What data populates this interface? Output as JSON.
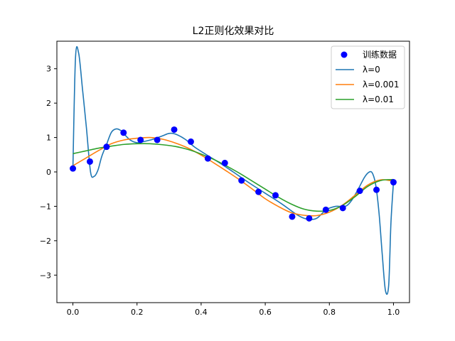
{
  "chart_data": {
    "type": "line",
    "title": "L2正则化效果对比",
    "xlabel": "",
    "ylabel": "",
    "xlim": [
      -0.05,
      1.05
    ],
    "ylim": [
      -3.8,
      3.8
    ],
    "xticks": [
      0.0,
      0.2,
      0.4,
      0.6,
      0.8,
      1.0
    ],
    "xtick_labels": [
      "0.0",
      "0.2",
      "0.4",
      "0.6",
      "0.8",
      "1.0"
    ],
    "yticks": [
      -3,
      -2,
      -1,
      0,
      1,
      2,
      3
    ],
    "ytick_labels": [
      "−3",
      "−2",
      "−1",
      "0",
      "1",
      "2",
      "3"
    ],
    "grid": false,
    "legend_position": "top-right",
    "scatter": {
      "name": "训练数据",
      "color": "#0000ff",
      "x": [
        0.0,
        0.053,
        0.105,
        0.158,
        0.211,
        0.263,
        0.316,
        0.368,
        0.421,
        0.474,
        0.526,
        0.579,
        0.632,
        0.684,
        0.737,
        0.789,
        0.842,
        0.895,
        0.947,
        1.0
      ],
      "y": [
        0.1,
        0.3,
        0.73,
        1.14,
        0.93,
        0.93,
        1.23,
        0.88,
        0.39,
        0.26,
        -0.25,
        -0.58,
        -0.68,
        -1.3,
        -1.35,
        -1.1,
        -1.05,
        -0.55,
        -0.52,
        -0.3
      ]
    },
    "series": [
      {
        "name": "λ=0",
        "color": "#1f77b4",
        "x": [
          0.0,
          0.008,
          0.018,
          0.03,
          0.042,
          0.055,
          0.066,
          0.078,
          0.09,
          0.105,
          0.12,
          0.135,
          0.15,
          0.165,
          0.18,
          0.2,
          0.22,
          0.25,
          0.28,
          0.3,
          0.32,
          0.35,
          0.38,
          0.42,
          0.46,
          0.5,
          0.55,
          0.6,
          0.65,
          0.7,
          0.73,
          0.76,
          0.79,
          0.82,
          0.85,
          0.87,
          0.89,
          0.91,
          0.925,
          0.935,
          0.945,
          0.955,
          0.965,
          0.975,
          0.985,
          0.992,
          1.0
        ],
        "y": [
          0.1,
          3.3,
          3.45,
          2.4,
          1.3,
          0.0,
          -0.13,
          0.05,
          0.45,
          0.8,
          1.15,
          1.25,
          1.2,
          1.05,
          0.92,
          0.85,
          0.88,
          0.95,
          1.05,
          1.12,
          1.1,
          0.95,
          0.72,
          0.48,
          0.25,
          0.0,
          -0.32,
          -0.62,
          -0.92,
          -1.25,
          -1.37,
          -1.35,
          -1.1,
          -1.0,
          -1.0,
          -0.82,
          -0.5,
          -0.15,
          0.0,
          -0.05,
          -0.4,
          -1.2,
          -2.4,
          -3.45,
          -3.3,
          -1.5,
          -0.3
        ]
      },
      {
        "name": "λ=0.001",
        "color": "#ff7f0e",
        "x": [
          0.0,
          0.04,
          0.08,
          0.12,
          0.16,
          0.2,
          0.24,
          0.28,
          0.32,
          0.36,
          0.4,
          0.44,
          0.48,
          0.52,
          0.56,
          0.6,
          0.64,
          0.68,
          0.72,
          0.76,
          0.8,
          0.84,
          0.88,
          0.92,
          0.96,
          1.0
        ],
        "y": [
          0.18,
          0.4,
          0.62,
          0.82,
          0.93,
          0.98,
          1.0,
          0.95,
          0.84,
          0.69,
          0.49,
          0.26,
          0.02,
          -0.23,
          -0.5,
          -0.78,
          -1.0,
          -1.18,
          -1.26,
          -1.27,
          -1.17,
          -0.97,
          -0.68,
          -0.38,
          -0.23,
          -0.27
        ]
      },
      {
        "name": "λ=0.01",
        "color": "#2ca02c",
        "x": [
          0.0,
          0.04,
          0.08,
          0.12,
          0.16,
          0.2,
          0.24,
          0.28,
          0.32,
          0.36,
          0.4,
          0.44,
          0.48,
          0.52,
          0.56,
          0.6,
          0.64,
          0.68,
          0.72,
          0.76,
          0.8,
          0.84,
          0.88,
          0.92,
          0.96,
          1.0
        ],
        "y": [
          0.53,
          0.61,
          0.69,
          0.75,
          0.8,
          0.82,
          0.82,
          0.79,
          0.74,
          0.65,
          0.52,
          0.36,
          0.17,
          -0.04,
          -0.27,
          -0.5,
          -0.73,
          -0.93,
          -1.08,
          -1.14,
          -1.12,
          -0.98,
          -0.72,
          -0.42,
          -0.25,
          -0.22
        ]
      }
    ]
  }
}
